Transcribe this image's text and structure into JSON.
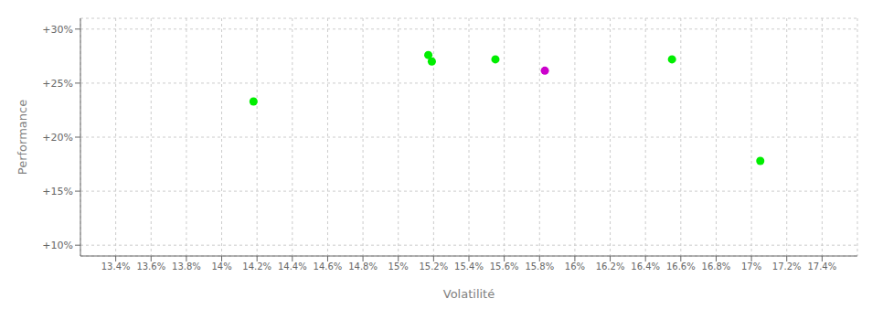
{
  "chart_data": {
    "type": "scatter",
    "xlabel": "Volatilité",
    "ylabel": "Performance",
    "x": [
      0.1517,
      0.1519,
      0.1555,
      0.1583,
      0.1418,
      0.1655,
      0.1705
    ],
    "values": [
      0.276,
      0.27,
      0.272,
      0.2615,
      0.233,
      0.272,
      0.178
    ],
    "colors": [
      "#00ee00",
      "#00ee00",
      "#00ee00",
      "#cc00cc",
      "#00ee00",
      "#00ee00",
      "#00ee00"
    ],
    "marker": "circle",
    "xlim": [
      0.132,
      0.176
    ],
    "ylim": [
      0.09,
      0.31
    ],
    "xticks": [
      {
        "value": 0.134,
        "label": "13.4%"
      },
      {
        "value": 0.136,
        "label": "13.6%"
      },
      {
        "value": 0.138,
        "label": "13.8%"
      },
      {
        "value": 0.14,
        "label": "14%"
      },
      {
        "value": 0.142,
        "label": "14.2%"
      },
      {
        "value": 0.144,
        "label": "14.4%"
      },
      {
        "value": 0.146,
        "label": "14.6%"
      },
      {
        "value": 0.148,
        "label": "14.8%"
      },
      {
        "value": 0.15,
        "label": "15%"
      },
      {
        "value": 0.152,
        "label": "15.2%"
      },
      {
        "value": 0.154,
        "label": "15.4%"
      },
      {
        "value": 0.156,
        "label": "15.6%"
      },
      {
        "value": 0.158,
        "label": "15.8%"
      },
      {
        "value": 0.16,
        "label": "16%"
      },
      {
        "value": 0.162,
        "label": "16.2%"
      },
      {
        "value": 0.164,
        "label": "16.4%"
      },
      {
        "value": 0.166,
        "label": "16.6%"
      },
      {
        "value": 0.168,
        "label": "16.8%"
      },
      {
        "value": 0.17,
        "label": "17%"
      },
      {
        "value": 0.172,
        "label": "17.2%"
      },
      {
        "value": 0.174,
        "label": "17.4%"
      }
    ],
    "yticks": [
      {
        "value": 0.1,
        "label": "+10%"
      },
      {
        "value": 0.15,
        "label": "+15%"
      },
      {
        "value": 0.2,
        "label": "+20%"
      },
      {
        "value": 0.25,
        "label": "+25%"
      },
      {
        "value": 0.3,
        "label": "+30%"
      }
    ],
    "grid": true
  }
}
